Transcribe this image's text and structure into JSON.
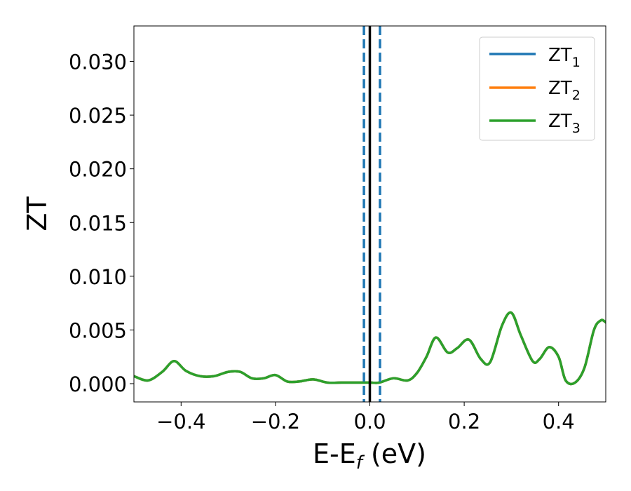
{
  "chart_data": {
    "type": "line",
    "xlabel": "E-E",
    "xlabel_sub": "f",
    "xlabel_unit": " (eV)",
    "ylabel": "ZT",
    "xlim": [
      -0.5,
      0.5
    ],
    "ylim": [
      -0.0017,
      0.0333
    ],
    "x_ticks": [
      -0.4,
      -0.2,
      0.0,
      0.2,
      0.4
    ],
    "x_tick_labels": [
      "−0.4",
      "−0.2",
      "0.0",
      "0.2",
      "0.4"
    ],
    "y_ticks": [
      0.0,
      0.005,
      0.01,
      0.015,
      0.02,
      0.025,
      0.03
    ],
    "y_tick_labels": [
      "0.000",
      "0.005",
      "0.010",
      "0.015",
      "0.020",
      "0.025",
      "0.030"
    ],
    "grid": false,
    "legend_position": "top-right",
    "series": [
      {
        "name": "ZT",
        "sub": "1",
        "color": "#1f77b4",
        "x": [
          -0.5,
          -0.47,
          -0.44,
          -0.415,
          -0.39,
          -0.36,
          -0.33,
          -0.3,
          -0.275,
          -0.25,
          -0.225,
          -0.2,
          -0.175,
          -0.15,
          -0.12,
          -0.09,
          -0.06,
          -0.03,
          0.0,
          0.02,
          0.05,
          0.08,
          0.1,
          0.12,
          0.14,
          0.165,
          0.185,
          0.21,
          0.235,
          0.255,
          0.28,
          0.3,
          0.32,
          0.345,
          0.36,
          0.38,
          0.4,
          0.415,
          0.435,
          0.455,
          0.475,
          0.49,
          0.5
        ],
        "y": [
          0.0007,
          0.0003,
          0.0011,
          0.0021,
          0.0012,
          0.0007,
          0.0007,
          0.0011,
          0.0011,
          0.0005,
          0.0005,
          0.0008,
          0.0002,
          0.0002,
          0.0004,
          0.0001,
          0.0001,
          0.0001,
          0.0001,
          0.0001,
          0.0005,
          0.0003,
          0.001,
          0.0025,
          0.0043,
          0.0029,
          0.0033,
          0.0041,
          0.0023,
          0.002,
          0.0054,
          0.0066,
          0.0045,
          0.0021,
          0.0023,
          0.0034,
          0.0025,
          0.0003,
          0.0001,
          0.0015,
          0.005,
          0.0059,
          0.0057
        ]
      },
      {
        "name": "ZT",
        "sub": "2",
        "color": "#ff7f0e",
        "x": [
          -0.5,
          -0.47,
          -0.44,
          -0.415,
          -0.39,
          -0.36,
          -0.33,
          -0.3,
          -0.275,
          -0.25,
          -0.225,
          -0.2,
          -0.175,
          -0.15,
          -0.12,
          -0.09,
          -0.06,
          -0.03,
          0.0,
          0.02,
          0.05,
          0.08,
          0.1,
          0.12,
          0.14,
          0.165,
          0.185,
          0.21,
          0.235,
          0.255,
          0.28,
          0.3,
          0.32,
          0.345,
          0.36,
          0.38,
          0.4,
          0.415,
          0.435,
          0.455,
          0.475,
          0.49,
          0.5
        ],
        "y": [
          0.0007,
          0.0003,
          0.0011,
          0.0021,
          0.0012,
          0.0007,
          0.0007,
          0.0011,
          0.0011,
          0.0005,
          0.0005,
          0.0008,
          0.0002,
          0.0002,
          0.0004,
          0.0001,
          0.0001,
          0.0001,
          0.0001,
          0.0001,
          0.0005,
          0.0003,
          0.001,
          0.0025,
          0.0043,
          0.0029,
          0.0033,
          0.0041,
          0.0023,
          0.002,
          0.0054,
          0.0066,
          0.0045,
          0.0021,
          0.0023,
          0.0034,
          0.0025,
          0.0003,
          0.0001,
          0.0015,
          0.005,
          0.0059,
          0.0057
        ]
      },
      {
        "name": "ZT",
        "sub": "3",
        "color": "#2ca02c",
        "x": [
          -0.5,
          -0.47,
          -0.44,
          -0.415,
          -0.39,
          -0.36,
          -0.33,
          -0.3,
          -0.275,
          -0.25,
          -0.225,
          -0.2,
          -0.175,
          -0.15,
          -0.12,
          -0.09,
          -0.06,
          -0.03,
          0.0,
          0.02,
          0.05,
          0.08,
          0.1,
          0.12,
          0.14,
          0.165,
          0.185,
          0.21,
          0.235,
          0.255,
          0.28,
          0.3,
          0.32,
          0.345,
          0.36,
          0.38,
          0.4,
          0.415,
          0.435,
          0.455,
          0.475,
          0.49,
          0.5
        ],
        "y": [
          0.0007,
          0.0003,
          0.0011,
          0.0021,
          0.0012,
          0.0007,
          0.0007,
          0.0011,
          0.0011,
          0.0005,
          0.0005,
          0.0008,
          0.0002,
          0.0002,
          0.0004,
          0.0001,
          0.0001,
          0.0001,
          0.0001,
          0.0001,
          0.0005,
          0.0003,
          0.001,
          0.0025,
          0.0043,
          0.0029,
          0.0033,
          0.0041,
          0.0023,
          0.002,
          0.0054,
          0.0066,
          0.0045,
          0.0021,
          0.0023,
          0.0034,
          0.0025,
          0.0003,
          0.0001,
          0.0015,
          0.005,
          0.0059,
          0.0057
        ]
      }
    ],
    "vertical_lines": [
      {
        "x": 0.0,
        "style": "solid",
        "color": "#000000"
      },
      {
        "x": -0.0125,
        "style": "dashed",
        "color": "#1f77b4"
      },
      {
        "x": 0.0215,
        "style": "dashed",
        "color": "#1f77b4"
      }
    ]
  }
}
